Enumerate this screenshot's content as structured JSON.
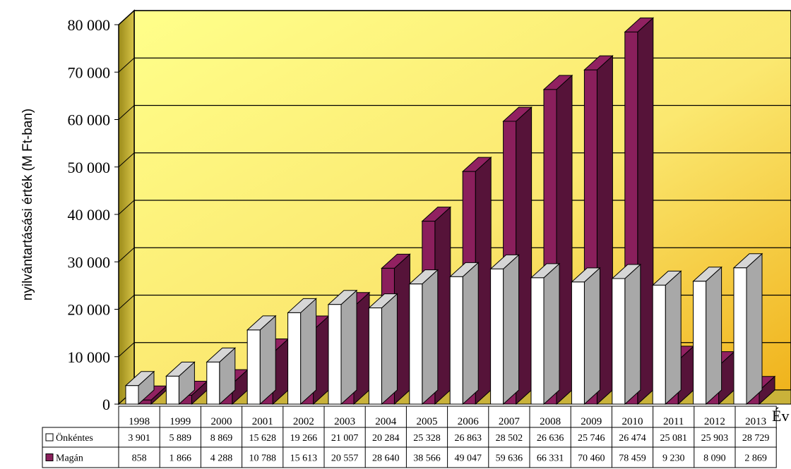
{
  "chart_data": {
    "type": "bar",
    "ylabel": "nyilvántartásási érték (M Ft-ban)",
    "xlabel": "Év",
    "ylim": [
      0,
      80000
    ],
    "yticks": [
      0,
      10000,
      20000,
      30000,
      40000,
      50000,
      60000,
      70000,
      80000
    ],
    "ytick_labels": [
      "0",
      "10 000",
      "20 000",
      "30 000",
      "40 000",
      "50 000",
      "60 000",
      "70 000",
      "80 000"
    ],
    "grid": true,
    "legend": "bottom-left data table",
    "categories": [
      "1998",
      "1999",
      "2000",
      "2001",
      "2002",
      "2003",
      "2004",
      "2005",
      "2006",
      "2007",
      "2008",
      "2009",
      "2010",
      "2011",
      "2012",
      "2013"
    ],
    "series": [
      {
        "name": "Önkéntes",
        "color": "#ffffff",
        "values": [
          3901,
          5889,
          8869,
          15628,
          19266,
          21007,
          20284,
          25328,
          26863,
          28502,
          26636,
          25746,
          26474,
          25081,
          25903,
          28729
        ],
        "labels": [
          "3 901",
          "5 889",
          "8 869",
          "15 628",
          "19 266",
          "21 007",
          "20 284",
          "25 328",
          "26 863",
          "28 502",
          "26 636",
          "25 746",
          "26 474",
          "25 081",
          "25 903",
          "28 729"
        ]
      },
      {
        "name": "Magán",
        "color": "#8a1f5c",
        "values": [
          858,
          1866,
          4288,
          10788,
          15613,
          20557,
          28640,
          38566,
          49047,
          59636,
          66331,
          70460,
          78459,
          9230,
          8090,
          2869
        ],
        "labels": [
          "858",
          "1 866",
          "4 288",
          "10 788",
          "15 613",
          "20 557",
          "28 640",
          "38 566",
          "49 047",
          "59 636",
          "66 331",
          "70 460",
          "78 459",
          "9 230",
          "8 090",
          "2 869"
        ]
      }
    ]
  }
}
